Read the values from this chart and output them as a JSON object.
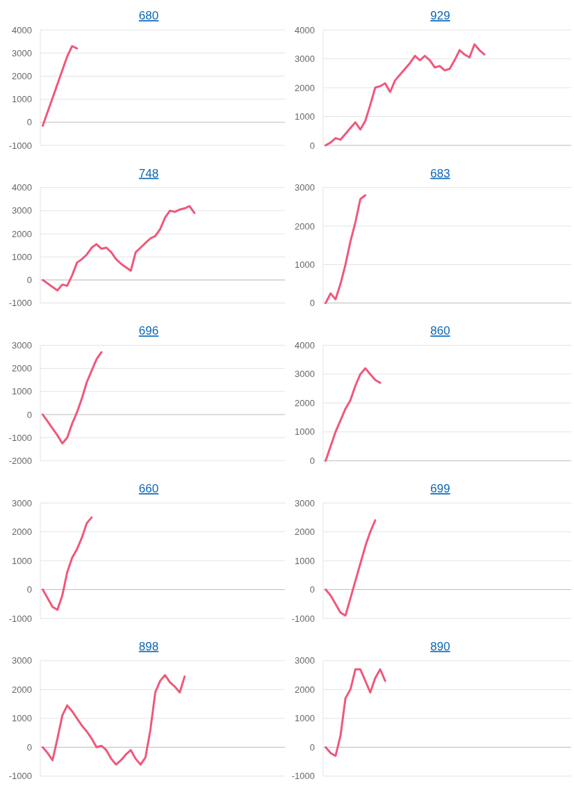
{
  "chart_data": [
    {
      "type": "line",
      "title": "680",
      "color": "#f0577a",
      "grid": "y",
      "tick_labels": "y",
      "ylim": [
        -1000,
        4000
      ],
      "yticks": [
        -1000,
        0,
        1000,
        2000,
        3000,
        4000
      ],
      "categories": [
        null,
        null,
        null,
        null,
        null,
        null,
        null,
        null,
        null,
        null,
        null,
        null,
        null,
        null,
        null,
        null,
        null,
        null,
        null,
        null,
        null,
        null,
        null,
        null,
        null,
        null,
        null,
        null,
        null,
        null,
        null,
        null,
        null,
        null,
        null,
        null,
        null,
        null,
        null,
        null,
        null,
        null,
        null,
        null,
        null,
        null,
        null,
        null,
        null,
        null
      ],
      "values": [
        -150,
        450,
        1050,
        1650,
        2250,
        2850,
        3300,
        3200,
        null,
        null,
        null,
        null,
        null,
        null,
        null,
        null,
        null,
        null,
        null,
        null,
        null,
        null,
        null,
        null,
        null,
        null,
        null,
        null,
        null,
        null,
        null,
        null,
        null,
        null,
        null,
        null,
        null,
        null,
        null,
        null,
        null,
        null,
        null,
        null,
        null,
        null,
        null,
        null,
        null,
        null
      ]
    },
    {
      "type": "line",
      "title": "929",
      "color": "#f0577a",
      "grid": "y",
      "tick_labels": "y",
      "ylim": [
        0,
        4000
      ],
      "yticks": [
        0,
        1000,
        2000,
        3000,
        4000
      ],
      "categories": [
        null,
        null,
        null,
        null,
        null,
        null,
        null,
        null,
        null,
        null,
        null,
        null,
        null,
        null,
        null,
        null,
        null,
        null,
        null,
        null,
        null,
        null,
        null,
        null,
        null,
        null,
        null,
        null,
        null,
        null,
        null,
        null,
        null,
        null,
        null,
        null,
        null,
        null,
        null,
        null,
        null,
        null,
        null,
        null,
        null,
        null,
        null,
        null,
        null,
        null
      ],
      "values": [
        0,
        100,
        250,
        200,
        400,
        600,
        800,
        550,
        850,
        1400,
        2000,
        2050,
        2150,
        1850,
        2250,
        2450,
        2650,
        2850,
        3100,
        2950,
        3100,
        2950,
        2700,
        2750,
        2600,
        2650,
        2950,
        3300,
        3150,
        3050,
        3500,
        3300,
        3150,
        null,
        null,
        null,
        null,
        null,
        null,
        null,
        null,
        null,
        null,
        null,
        null,
        null,
        null,
        null,
        null,
        null
      ]
    },
    {
      "type": "line",
      "title": "748",
      "color": "#f0577a",
      "grid": "y",
      "tick_labels": "y",
      "ylim": [
        -1000,
        4000
      ],
      "yticks": [
        -1000,
        0,
        1000,
        2000,
        3000,
        4000
      ],
      "categories": [
        null,
        null,
        null,
        null,
        null,
        null,
        null,
        null,
        null,
        null,
        null,
        null,
        null,
        null,
        null,
        null,
        null,
        null,
        null,
        null,
        null,
        null,
        null,
        null,
        null,
        null,
        null,
        null,
        null,
        null,
        null,
        null,
        null,
        null,
        null,
        null,
        null,
        null,
        null,
        null,
        null,
        null,
        null,
        null,
        null,
        null,
        null,
        null,
        null,
        null
      ],
      "values": [
        0,
        -150,
        -300,
        -450,
        -200,
        -250,
        200,
        750,
        900,
        1100,
        1400,
        1550,
        1350,
        1400,
        1200,
        900,
        700,
        550,
        400,
        1200,
        1400,
        1600,
        1800,
        1900,
        2200,
        2700,
        3000,
        2950,
        3050,
        3100,
        3200,
        2900,
        null,
        null,
        null,
        null,
        null,
        null,
        null,
        null,
        null,
        null,
        null,
        null,
        null,
        null,
        null,
        null,
        null,
        null
      ]
    },
    {
      "type": "line",
      "title": "683",
      "color": "#f0577a",
      "grid": "y",
      "tick_labels": "y",
      "ylim": [
        0,
        3000
      ],
      "yticks": [
        0,
        1000,
        2000,
        3000
      ],
      "categories": [
        null,
        null,
        null,
        null,
        null,
        null,
        null,
        null,
        null,
        null,
        null,
        null,
        null,
        null,
        null,
        null,
        null,
        null,
        null,
        null,
        null,
        null,
        null,
        null,
        null,
        null,
        null,
        null,
        null,
        null,
        null,
        null,
        null,
        null,
        null,
        null,
        null,
        null,
        null,
        null,
        null,
        null,
        null,
        null,
        null,
        null,
        null,
        null,
        null,
        null
      ],
      "values": [
        0,
        250,
        100,
        500,
        1000,
        1600,
        2100,
        2700,
        2800,
        null,
        null,
        null,
        null,
        null,
        null,
        null,
        null,
        null,
        null,
        null,
        null,
        null,
        null,
        null,
        null,
        null,
        null,
        null,
        null,
        null,
        null,
        null,
        null,
        null,
        null,
        null,
        null,
        null,
        null,
        null,
        null,
        null,
        null,
        null,
        null,
        null,
        null,
        null,
        null,
        null
      ]
    },
    {
      "type": "line",
      "title": "696",
      "color": "#f0577a",
      "grid": "y",
      "tick_labels": "y",
      "ylim": [
        -2000,
        3000
      ],
      "yticks": [
        -2000,
        -1000,
        0,
        1000,
        2000,
        3000
      ],
      "categories": [
        null,
        null,
        null,
        null,
        null,
        null,
        null,
        null,
        null,
        null,
        null,
        null,
        null,
        null,
        null,
        null,
        null,
        null,
        null,
        null,
        null,
        null,
        null,
        null,
        null,
        null,
        null,
        null,
        null,
        null,
        null,
        null,
        null,
        null,
        null,
        null,
        null,
        null,
        null,
        null,
        null,
        null,
        null,
        null,
        null,
        null,
        null,
        null,
        null,
        null
      ],
      "values": [
        0,
        -300,
        -600,
        -900,
        -1250,
        -1000,
        -400,
        100,
        700,
        1400,
        1900,
        2400,
        2700,
        null,
        null,
        null,
        null,
        null,
        null,
        null,
        null,
        null,
        null,
        null,
        null,
        null,
        null,
        null,
        null,
        null,
        null,
        null,
        null,
        null,
        null,
        null,
        null,
        null,
        null,
        null,
        null,
        null,
        null,
        null,
        null,
        null,
        null,
        null,
        null,
        null
      ]
    },
    {
      "type": "line",
      "title": "860",
      "color": "#f0577a",
      "grid": "y",
      "tick_labels": "y",
      "ylim": [
        0,
        4000
      ],
      "yticks": [
        0,
        1000,
        2000,
        3000,
        4000
      ],
      "categories": [
        null,
        null,
        null,
        null,
        null,
        null,
        null,
        null,
        null,
        null,
        null,
        null,
        null,
        null,
        null,
        null,
        null,
        null,
        null,
        null,
        null,
        null,
        null,
        null,
        null,
        null,
        null,
        null,
        null,
        null,
        null,
        null,
        null,
        null,
        null,
        null,
        null,
        null,
        null,
        null,
        null,
        null,
        null,
        null,
        null,
        null,
        null,
        null,
        null,
        null
      ],
      "values": [
        0,
        500,
        1000,
        1400,
        1800,
        2100,
        2600,
        3000,
        3200,
        3000,
        2800,
        2700,
        null,
        null,
        null,
        null,
        null,
        null,
        null,
        null,
        null,
        null,
        null,
        null,
        null,
        null,
        null,
        null,
        null,
        null,
        null,
        null,
        null,
        null,
        null,
        null,
        null,
        null,
        null,
        null,
        null,
        null,
        null,
        null,
        null,
        null,
        null,
        null,
        null,
        null
      ]
    },
    {
      "type": "line",
      "title": "660",
      "color": "#f0577a",
      "grid": "y",
      "tick_labels": "y",
      "ylim": [
        -1000,
        3000
      ],
      "yticks": [
        -1000,
        0,
        1000,
        2000,
        3000
      ],
      "categories": [
        null,
        null,
        null,
        null,
        null,
        null,
        null,
        null,
        null,
        null,
        null,
        null,
        null,
        null,
        null,
        null,
        null,
        null,
        null,
        null,
        null,
        null,
        null,
        null,
        null,
        null,
        null,
        null,
        null,
        null,
        null,
        null,
        null,
        null,
        null,
        null,
        null,
        null,
        null,
        null,
        null,
        null,
        null,
        null,
        null,
        null,
        null,
        null,
        null,
        null
      ],
      "values": [
        0,
        -300,
        -600,
        -700,
        -200,
        600,
        1100,
        1400,
        1800,
        2300,
        2500,
        null,
        null,
        null,
        null,
        null,
        null,
        null,
        null,
        null,
        null,
        null,
        null,
        null,
        null,
        null,
        null,
        null,
        null,
        null,
        null,
        null,
        null,
        null,
        null,
        null,
        null,
        null,
        null,
        null,
        null,
        null,
        null,
        null,
        null,
        null,
        null,
        null,
        null,
        null
      ]
    },
    {
      "type": "line",
      "title": "699",
      "color": "#f0577a",
      "grid": "y",
      "tick_labels": "y",
      "ylim": [
        -1000,
        3000
      ],
      "yticks": [
        -1000,
        0,
        1000,
        2000,
        3000
      ],
      "categories": [
        null,
        null,
        null,
        null,
        null,
        null,
        null,
        null,
        null,
        null,
        null,
        null,
        null,
        null,
        null,
        null,
        null,
        null,
        null,
        null,
        null,
        null,
        null,
        null,
        null,
        null,
        null,
        null,
        null,
        null,
        null,
        null,
        null,
        null,
        null,
        null,
        null,
        null,
        null,
        null,
        null,
        null,
        null,
        null,
        null,
        null,
        null,
        null,
        null,
        null
      ],
      "values": [
        0,
        -200,
        -500,
        -800,
        -900,
        -300,
        300,
        900,
        1500,
        2000,
        2400,
        null,
        null,
        null,
        null,
        null,
        null,
        null,
        null,
        null,
        null,
        null,
        null,
        null,
        null,
        null,
        null,
        null,
        null,
        null,
        null,
        null,
        null,
        null,
        null,
        null,
        null,
        null,
        null,
        null,
        null,
        null,
        null,
        null,
        null,
        null,
        null,
        null,
        null,
        null
      ]
    },
    {
      "type": "line",
      "title": "898",
      "color": "#f0577a",
      "grid": "y",
      "tick_labels": "y",
      "ylim": [
        -1000,
        3000
      ],
      "yticks": [
        -1000,
        0,
        1000,
        2000,
        3000
      ],
      "categories": [
        null,
        null,
        null,
        null,
        null,
        null,
        null,
        null,
        null,
        null,
        null,
        null,
        null,
        null,
        null,
        null,
        null,
        null,
        null,
        null,
        null,
        null,
        null,
        null,
        null,
        null,
        null,
        null,
        null,
        null,
        null,
        null,
        null,
        null,
        null,
        null,
        null,
        null,
        null,
        null,
        null,
        null,
        null,
        null,
        null,
        null,
        null,
        null,
        null,
        null
      ],
      "values": [
        0,
        -200,
        -450,
        300,
        1100,
        1450,
        1250,
        1000,
        750,
        550,
        300,
        0,
        50,
        -100,
        -400,
        -600,
        -450,
        -250,
        -100,
        -400,
        -600,
        -350,
        600,
        1900,
        2300,
        2500,
        2250,
        2100,
        1900,
        2450,
        null,
        null,
        null,
        null,
        null,
        null,
        null,
        null,
        null,
        null,
        null,
        null,
        null,
        null,
        null,
        null,
        null,
        null,
        null,
        null
      ]
    },
    {
      "type": "line",
      "title": "890",
      "color": "#f0577a",
      "grid": "y",
      "tick_labels": "y",
      "ylim": [
        -1000,
        3000
      ],
      "yticks": [
        -1000,
        0,
        1000,
        2000,
        3000
      ],
      "categories": [
        null,
        null,
        null,
        null,
        null,
        null,
        null,
        null,
        null,
        null,
        null,
        null,
        null,
        null,
        null,
        null,
        null,
        null,
        null,
        null,
        null,
        null,
        null,
        null,
        null,
        null,
        null,
        null,
        null,
        null,
        null,
        null,
        null,
        null,
        null,
        null,
        null,
        null,
        null,
        null,
        null,
        null,
        null,
        null,
        null,
        null,
        null,
        null,
        null,
        null
      ],
      "values": [
        0,
        -200,
        -300,
        400,
        1700,
        2000,
        2700,
        2700,
        2300,
        1900,
        2400,
        2700,
        2300,
        null,
        null,
        null,
        null,
        null,
        null,
        null,
        null,
        null,
        null,
        null,
        null,
        null,
        null,
        null,
        null,
        null,
        null,
        null,
        null,
        null,
        null,
        null,
        null,
        null,
        null,
        null,
        null,
        null,
        null,
        null,
        null,
        null,
        null,
        null,
        null,
        null
      ]
    }
  ]
}
